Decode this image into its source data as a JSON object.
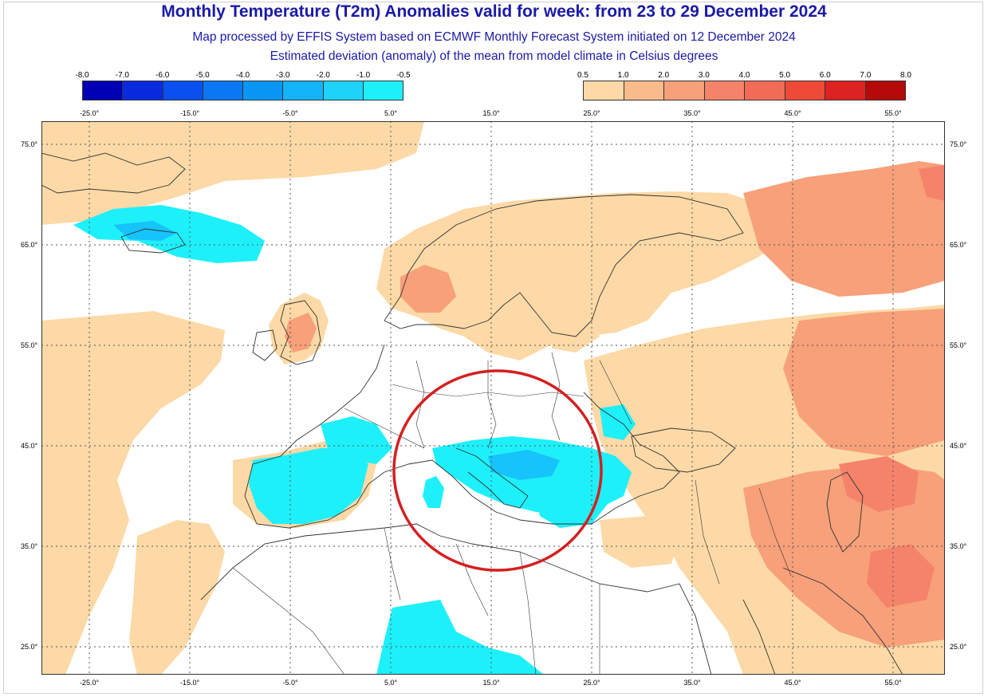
{
  "title": "Monthly Temperature (T2m) Anomalies valid for week: from 23 to 29 December 2024",
  "subtitle1": "Map processed by EFFIS System based on ECMWF Monthly Forecast System initiated on 12 December 2024",
  "subtitle2": "Estimated deviation (anomaly) of the mean from model climate in Celsius degrees",
  "legend_negative": {
    "labels": [
      "-8.0",
      "-7.0",
      "-6.0",
      "-5.0",
      "-4.0",
      "-3.0",
      "-2.0",
      "-1.0",
      "-0.5"
    ],
    "colors": [
      "#0000b4",
      "#0a2ae0",
      "#0a50f0",
      "#0a78f5",
      "#0a96f5",
      "#14b4fa",
      "#1ed2fa",
      "#1ef0fa"
    ]
  },
  "legend_positive": {
    "labels": [
      "0.5",
      "1.0",
      "2.0",
      "3.0",
      "4.0",
      "5.0",
      "6.0",
      "7.0",
      "8.0"
    ],
    "colors": [
      "#fcd9a6",
      "#f9bb8b",
      "#f7a07a",
      "#f5836a",
      "#f26b56",
      "#ef4a36",
      "#dd2222",
      "#b40a0a"
    ]
  },
  "longitude_labels": [
    "-25.0°",
    "-15.0°",
    "-5.0°",
    "5.0°",
    "15.0°",
    "25.0°",
    "35.0°",
    "45.0°",
    "55.0°"
  ],
  "latitude_labels": [
    "75.0°",
    "65.0°",
    "55.0°",
    "45.0°",
    "35.0°",
    "25.0°"
  ],
  "colors": {
    "title": "#1a1aa6",
    "highlight_circle": "#d42020",
    "land_border": "#333333"
  }
}
